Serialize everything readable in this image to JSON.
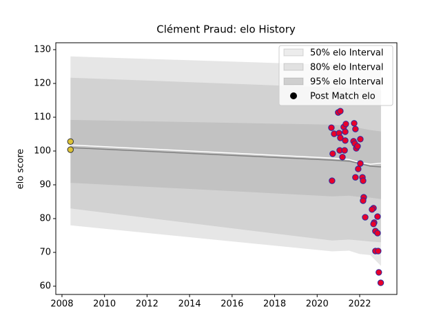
{
  "chart_data": {
    "type": "line",
    "title": "Clément Praud: elo History",
    "ylabel": "elo score",
    "xlim": [
      2007.71,
      2023.75
    ],
    "ylim": [
      57.55,
      132.04
    ],
    "xticks": [
      2008,
      2010,
      2012,
      2014,
      2016,
      2018,
      2020,
      2022
    ],
    "yticks": [
      60,
      70,
      80,
      90,
      100,
      110,
      120,
      130
    ],
    "legend": "upper right",
    "bands": [
      {
        "name": "95% elo Interval",
        "color": "#808080",
        "opacity": 0.2,
        "x": [
          2008.4,
          2020.7,
          2021.5,
          2022.0,
          2022.5,
          2023.0
        ],
        "upper": [
          128,
          125.5,
          125.2,
          124.8,
          124.5,
          124.3
        ],
        "lower": [
          78,
          70.3,
          70.5,
          69.5,
          69.2,
          66
        ]
      },
      {
        "name": "80% elo Interval",
        "color": "#808080",
        "opacity": 0.2,
        "x": [
          2008.4,
          2020.7,
          2021.5,
          2022.0,
          2022.5,
          2023.0
        ],
        "upper": [
          121.7,
          118.8,
          118.6,
          118.4,
          118.2,
          118.0
        ],
        "lower": [
          83,
          73.5,
          73.8,
          73.5,
          73.2,
          73
        ]
      },
      {
        "name": "50% elo Interval",
        "color": "#808080",
        "opacity": 0.2,
        "x": [
          2008.4,
          2020.7,
          2021.5,
          2022.0,
          2022.5,
          2023.0
        ],
        "upper": [
          109.2,
          107.8,
          107.5,
          106.8,
          106.2,
          105.8
        ],
        "lower": [
          90.6,
          86.6,
          86.8,
          86.4,
          86.2,
          85.8
        ]
      }
    ],
    "lines": [
      {
        "color": "#808080",
        "x": [
          2008.4,
          2020.7,
          2021.5,
          2022.0,
          2022.5,
          2023.0
        ],
        "values": [
          101,
          97.3,
          97,
          96.3,
          95.5,
          95.3
        ]
      },
      {
        "color": "#ffffff",
        "x": [
          2008.4,
          2020.7,
          2021.5,
          2022.0,
          2022.5,
          2023.0
        ],
        "values": [
          101.8,
          97.9,
          97.5,
          96.6,
          96.1,
          96.4
        ]
      }
    ],
    "points": {
      "name": "Post Match elo",
      "legend_color": "#000000",
      "groups": [
        {
          "color": "#dcc236",
          "edge": "#333333",
          "x": [
            2008.4,
            2008.4
          ],
          "y": [
            102.8,
            100.4
          ]
        },
        {
          "color": "#e8002a",
          "edge": "#2a2aa0",
          "x": [
            2020.67,
            2020.73,
            2020.7,
            2020.8,
            2020.99,
            2021.09,
            2021.03,
            2021.06,
            2021.09,
            2021.19,
            2021.25,
            2021.32,
            2021.29,
            2021.35,
            2021.32,
            2021.74,
            2021.8,
            2021.71,
            2021.77,
            2021.84,
            2021.9,
            2022.03,
            2022.03,
            2021.93,
            2021.8,
            2022.13,
            2022.16,
            2022.19,
            2022.16,
            2022.26,
            2022.65,
            2022.58,
            2022.68,
            2022.65,
            2022.74,
            2022.84,
            2022.84,
            2022.74,
            2022.87,
            2022.9,
            2022.99
          ],
          "y": [
            106.9,
            99.2,
            91.2,
            105.1,
            111.4,
            111.8,
            105.3,
            100.2,
            103.9,
            98.2,
            107.1,
            105.7,
            100.2,
            108.0,
            103.1,
            108.2,
            106.5,
            102.9,
            102.2,
            100.8,
            101.4,
            103.5,
            96.3,
            94.7,
            92.2,
            92.2,
            91.2,
            86.3,
            85.3,
            80.4,
            83.1,
            82.7,
            78.8,
            78.4,
            76.3,
            75.7,
            80.6,
            70.4,
            70.4,
            64.1,
            61.0
          ]
        }
      ]
    }
  }
}
